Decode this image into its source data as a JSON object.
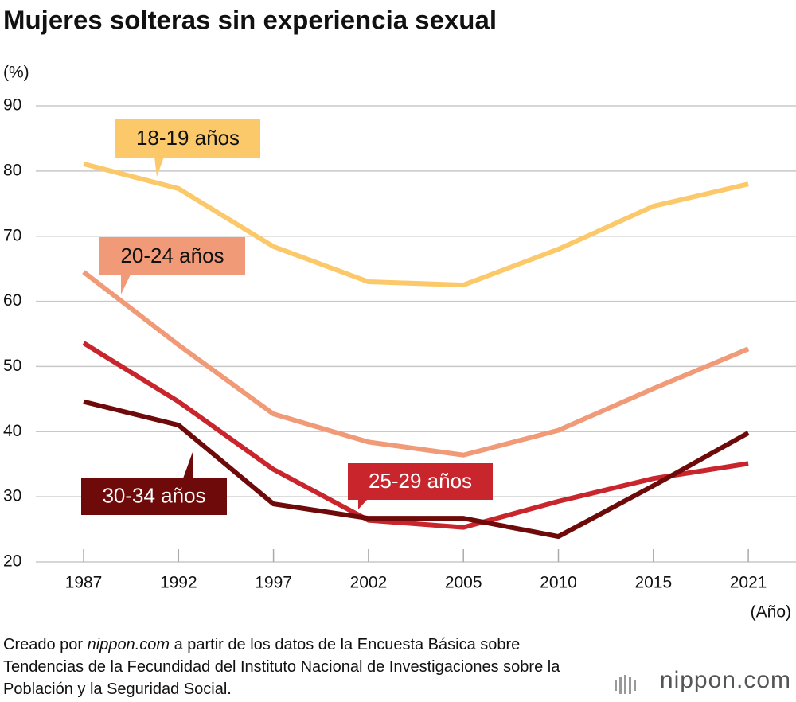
{
  "chart_data": {
    "type": "line",
    "title": "Mujeres solteras sin experiencia sexual",
    "y_unit": "(%)",
    "x_unit": "(Año)",
    "categories": [
      "1987",
      "1992",
      "1997",
      "2002",
      "2005",
      "2010",
      "2015",
      "2021"
    ],
    "series": [
      {
        "name": "18-19 años",
        "color": "#fbc96a",
        "values": [
          81.1,
          77.3,
          68.4,
          63.0,
          62.5,
          68.0,
          74.6,
          78.0
        ]
      },
      {
        "name": "20-24 años",
        "color": "#f19a78",
        "values": [
          64.5,
          53.3,
          42.7,
          38.4,
          36.4,
          40.2,
          46.6,
          52.7
        ]
      },
      {
        "name": "25-29 años",
        "color": "#c8262c",
        "values": [
          53.6,
          44.6,
          34.2,
          26.4,
          25.3,
          29.3,
          32.8,
          35.1
        ]
      },
      {
        "name": "30-34 años",
        "color": "#6e0a0a",
        "values": [
          44.6,
          41.0,
          28.9,
          26.7,
          26.7,
          23.9,
          31.7,
          39.8
        ]
      }
    ],
    "ylim": [
      20,
      90
    ],
    "yticks": [
      20,
      30,
      40,
      50,
      60,
      70,
      80,
      90
    ],
    "grid": true,
    "source": [
      "Creado por",
      "nippon.com",
      "a partir de los datos de la Encuesta Básica sobre Tendencias de la Fecundidad del Instituto Nacional de Investigaciones sobre la Población y la Seguridad Social."
    ],
    "logo": "nippon.com"
  }
}
